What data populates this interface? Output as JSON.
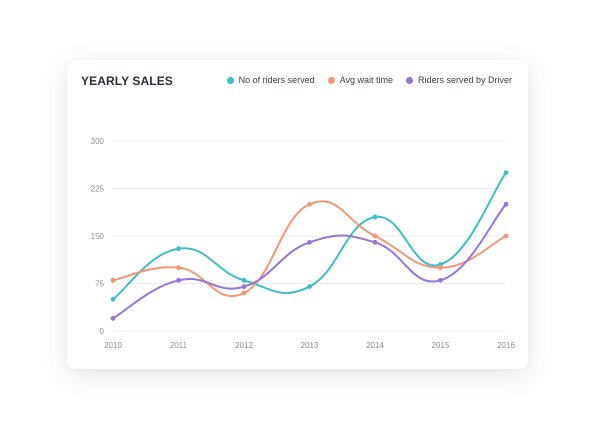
{
  "chart_data": {
    "type": "line",
    "title": "YEARLY SALES",
    "categories": [
      "2010",
      "2011",
      "2012",
      "2013",
      "2014",
      "2015",
      "2016"
    ],
    "ylim": [
      0,
      300
    ],
    "yticks": [
      0,
      75,
      150,
      225,
      300
    ],
    "grid": true,
    "legend_position": "top-right",
    "series": [
      {
        "name": "No of riders served",
        "color": "#3dbfc6",
        "values": [
          50,
          130,
          80,
          70,
          180,
          105,
          250
        ]
      },
      {
        "name": "Avg wait time",
        "color": "#f2967a",
        "values": [
          80,
          100,
          60,
          200,
          150,
          100,
          150
        ]
      },
      {
        "name": "Riders served by Driver",
        "color": "#9875d2",
        "values": [
          20,
          80,
          70,
          140,
          140,
          80,
          200
        ]
      }
    ]
  }
}
